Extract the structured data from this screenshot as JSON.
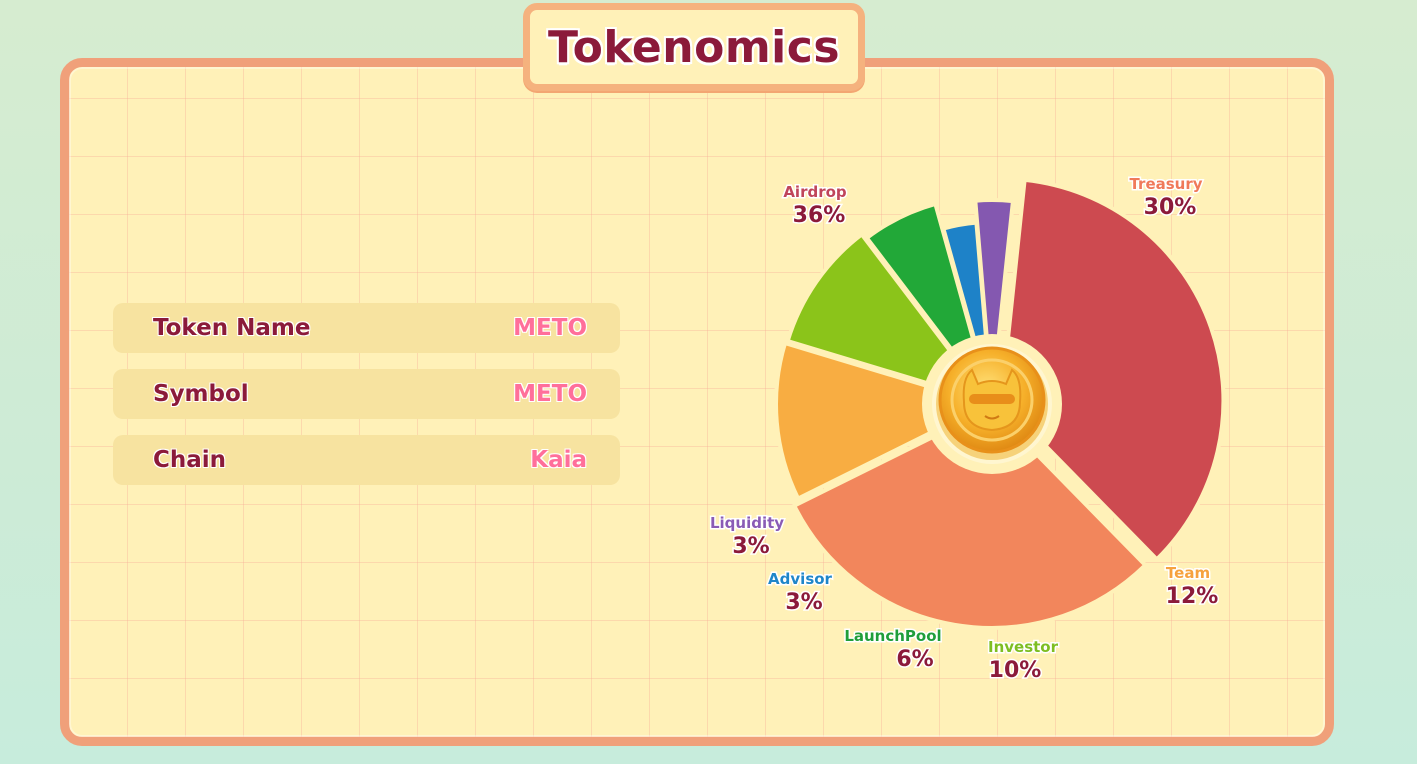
{
  "title": "Tokenomics",
  "info": [
    {
      "label": "Token Name",
      "value": "METO"
    },
    {
      "label": "Symbol",
      "value": "METO"
    },
    {
      "label": "Chain",
      "value": "Kaia"
    }
  ],
  "chart_data": {
    "type": "pie",
    "center_icon": "cat-coin-icon",
    "slices": [
      {
        "name": "Airdrop",
        "value": 36,
        "label": "36%",
        "color": "#cd4a50",
        "label_color": "#c0455a"
      },
      {
        "name": "Treasury",
        "value": 30,
        "label": "30%",
        "color": "#f2865c",
        "label_color": "#f07a5a"
      },
      {
        "name": "Team",
        "value": 12,
        "label": "12%",
        "color": "#f8ad42",
        "label_color": "#f6a23e"
      },
      {
        "name": "Investor",
        "value": 10,
        "label": "10%",
        "color": "#8bc41a",
        "label_color": "#7ebe22"
      },
      {
        "name": "LaunchPool",
        "value": 6,
        "label": "6%",
        "color": "#22a838",
        "label_color": "#209e3a"
      },
      {
        "name": "Advisor",
        "value": 3,
        "label": "3%",
        "color": "#1e82c8",
        "label_color": "#1f86c9"
      },
      {
        "name": "Liquidity",
        "value": 3,
        "label": "3%",
        "color": "#8458b0",
        "label_color": "#8a5bb5"
      }
    ]
  }
}
